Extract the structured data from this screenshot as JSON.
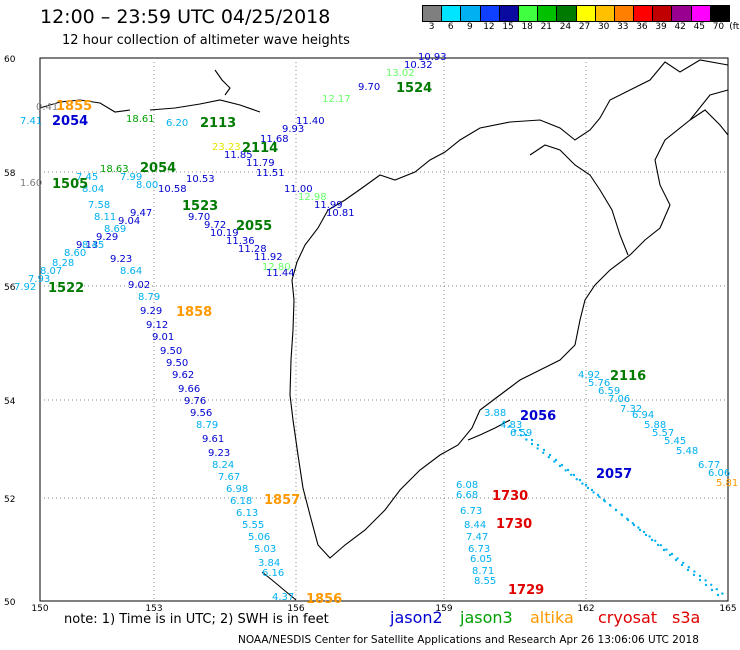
{
  "header": {
    "title": "12:00 – 23:59 UTC 04/25/2018",
    "subtitle": "12 hour collection of altimeter wave heights"
  },
  "colorbar": {
    "ticks": [
      "3",
      "6",
      "9",
      "12",
      "15",
      "18",
      "21",
      "24",
      "27",
      "30",
      "33",
      "36",
      "39",
      "42",
      "45",
      "70",
      "(ft)"
    ],
    "colors": [
      "#7f7f7f",
      "#00e5ff",
      "#00b0f0",
      "#1040ff",
      "#0a0aa0",
      "#40ff40",
      "#00c000",
      "#007a00",
      "#ffff00",
      "#ffc000",
      "#ff8000",
      "#ff0000",
      "#c00000",
      "#9a0090",
      "#ff00ff",
      "#000000"
    ]
  },
  "axes": {
    "lat_labels": [
      "60",
      "58",
      "56",
      "54",
      "52",
      "50"
    ],
    "lon_labels": [
      "150",
      "153",
      "156",
      "159",
      "162",
      "165"
    ]
  },
  "legend": {
    "note": "note: 1) Time is in UTC; 2) SWH is in feet",
    "items": [
      {
        "label": "jason2",
        "color": "#0000d0"
      },
      {
        "label": "jason3",
        "color": "#00a000"
      },
      {
        "label": "altika",
        "color": "#ff9900"
      },
      {
        "label": "cryosat",
        "color": "#e00000"
      },
      {
        "label": "s3a",
        "color": "#e00000"
      }
    ]
  },
  "credit": "NOAA/NESDIS Center for Satellite Applications and Research     Apr 26 13:06:06 UTC 2018",
  "pass_labels": [
    {
      "text": "1855",
      "color": "#ff9900"
    },
    {
      "text": "2054",
      "color": "#0000d0"
    },
    {
      "text": "2113",
      "color": "#007a00"
    },
    {
      "text": "1524",
      "color": "#007a00"
    },
    {
      "text": "2114",
      "color": "#007a00"
    },
    {
      "text": "1505",
      "color": "#007a00"
    },
    {
      "text": "2054",
      "color": "#007a00"
    },
    {
      "text": "1523",
      "color": "#007a00"
    },
    {
      "text": "2055",
      "color": "#007a00"
    },
    {
      "text": "1522",
      "color": "#007a00"
    },
    {
      "text": "1858",
      "color": "#ff9900"
    },
    {
      "text": "1857",
      "color": "#ff9900"
    },
    {
      "text": "1856",
      "color": "#ff9900"
    },
    {
      "text": "2116",
      "color": "#007a00"
    },
    {
      "text": "2056",
      "color": "#0000d0"
    },
    {
      "text": "2057",
      "color": "#0000d0"
    },
    {
      "text": "1730",
      "color": "#e00000"
    },
    {
      "text": "1730",
      "color": "#e00000"
    },
    {
      "text": "1729",
      "color": "#e00000"
    }
  ],
  "wave_values": [
    {
      "text": "10.93",
      "color": "#0000d0"
    },
    {
      "text": "10.32",
      "color": "#0000d0"
    },
    {
      "text": "13.02",
      "color": "#66ff66"
    },
    {
      "text": "9.70",
      "color": "#0000d0"
    },
    {
      "text": "0.41",
      "color": "#7f7f7f"
    },
    {
      "text": "7.41",
      "color": "#00b0f0"
    },
    {
      "text": "18.61",
      "color": "#00a000"
    },
    {
      "text": "6.20",
      "color": "#00b0f0"
    },
    {
      "text": "12.17",
      "color": "#66ff66"
    },
    {
      "text": "11.40",
      "color": "#0000d0"
    },
    {
      "text": "9.93",
      "color": "#0000d0"
    },
    {
      "text": "11.68",
      "color": "#0000d0"
    },
    {
      "text": "23.23",
      "color": "#e6e600"
    },
    {
      "text": "11.85",
      "color": "#0000d0"
    },
    {
      "text": "11.79",
      "color": "#0000d0"
    },
    {
      "text": "11.51",
      "color": "#0000d0"
    },
    {
      "text": "1.60",
      "color": "#7f7f7f"
    },
    {
      "text": "18.63",
      "color": "#00a000"
    },
    {
      "text": "7.45",
      "color": "#00b0f0"
    },
    {
      "text": "7.99",
      "color": "#00b0f0"
    },
    {
      "text": "8.04",
      "color": "#00b0f0"
    },
    {
      "text": "8.00",
      "color": "#00b0f0"
    },
    {
      "text": "10.53",
      "color": "#0000d0"
    },
    {
      "text": "10.58",
      "color": "#0000d0"
    },
    {
      "text": "11.00",
      "color": "#0000d0"
    },
    {
      "text": "12.98",
      "color": "#66ff66"
    },
    {
      "text": "11.99",
      "color": "#0000d0"
    },
    {
      "text": "10.81",
      "color": "#0000d0"
    },
    {
      "text": "7.58",
      "color": "#00b0f0"
    },
    {
      "text": "9.47",
      "color": "#0000d0"
    },
    {
      "text": "8.11",
      "color": "#00b0f0"
    },
    {
      "text": "9.04",
      "color": "#0000d0"
    },
    {
      "text": "9.70",
      "color": "#0000d0"
    },
    {
      "text": "9.72",
      "color": "#0000d0"
    },
    {
      "text": "10.19",
      "color": "#0000d0"
    },
    {
      "text": "8.69",
      "color": "#00b0f0"
    },
    {
      "text": "9.29",
      "color": "#0000d0"
    },
    {
      "text": "11.36",
      "color": "#0000d0"
    },
    {
      "text": "9.13",
      "color": "#0000d0"
    },
    {
      "text": "8.45",
      "color": "#00b0f0"
    },
    {
      "text": "11.28",
      "color": "#0000d0"
    },
    {
      "text": "8.60",
      "color": "#00b0f0"
    },
    {
      "text": "11.92",
      "color": "#0000d0"
    },
    {
      "text": "8.28",
      "color": "#00b0f0"
    },
    {
      "text": "9.23",
      "color": "#0000d0"
    },
    {
      "text": "12.80",
      "color": "#66ff66"
    },
    {
      "text": "8.07",
      "color": "#00b0f0"
    },
    {
      "text": "11.44",
      "color": "#0000d0"
    },
    {
      "text": "8.64",
      "color": "#00b0f0"
    },
    {
      "text": "7.93",
      "color": "#00b0f0"
    },
    {
      "text": "7.92",
      "color": "#00b0f0"
    },
    {
      "text": "9.02",
      "color": "#0000d0"
    },
    {
      "text": "8.79",
      "color": "#00b0f0"
    },
    {
      "text": "9.29",
      "color": "#0000d0"
    },
    {
      "text": "9.12",
      "color": "#0000d0"
    },
    {
      "text": "9.01",
      "color": "#0000d0"
    },
    {
      "text": "9.50",
      "color": "#0000d0"
    },
    {
      "text": "9.50",
      "color": "#0000d0"
    },
    {
      "text": "9.62",
      "color": "#0000d0"
    },
    {
      "text": "9.66",
      "color": "#0000d0"
    },
    {
      "text": "9.76",
      "color": "#0000d0"
    },
    {
      "text": "9.56",
      "color": "#0000d0"
    },
    {
      "text": "8.79",
      "color": "#00b0f0"
    },
    {
      "text": "9.61",
      "color": "#0000d0"
    },
    {
      "text": "9.23",
      "color": "#0000d0"
    },
    {
      "text": "8.24",
      "color": "#00b0f0"
    },
    {
      "text": "7.67",
      "color": "#00b0f0"
    },
    {
      "text": "6.98",
      "color": "#00b0f0"
    },
    {
      "text": "6.18",
      "color": "#00b0f0"
    },
    {
      "text": "6.13",
      "color": "#00b0f0"
    },
    {
      "text": "5.55",
      "color": "#00b0f0"
    },
    {
      "text": "5.06",
      "color": "#00b0f0"
    },
    {
      "text": "5.03",
      "color": "#00b0f0"
    },
    {
      "text": "3.84",
      "color": "#00b0f0"
    },
    {
      "text": "6.16",
      "color": "#00b0f0"
    },
    {
      "text": "4.37",
      "color": "#00b0f0"
    },
    {
      "text": "4.92",
      "color": "#00b0f0"
    },
    {
      "text": "5.76",
      "color": "#00b0f0"
    },
    {
      "text": "6.59",
      "color": "#00b0f0"
    },
    {
      "text": "7.06",
      "color": "#00b0f0"
    },
    {
      "text": "7.32",
      "color": "#00b0f0"
    },
    {
      "text": "6.94",
      "color": "#00b0f0"
    },
    {
      "text": "5.88",
      "color": "#00b0f0"
    },
    {
      "text": "5.57",
      "color": "#00b0f0"
    },
    {
      "text": "5.45",
      "color": "#00b0f0"
    },
    {
      "text": "5.48",
      "color": "#00b0f0"
    },
    {
      "text": "6.77",
      "color": "#00b0f0"
    },
    {
      "text": "6.06",
      "color": "#00b0f0"
    },
    {
      "text": "5.81",
      "color": "#ff9900"
    },
    {
      "text": "3.88",
      "color": "#00b0f0"
    },
    {
      "text": "4.83",
      "color": "#00b0f0"
    },
    {
      "text": "6.59",
      "color": "#00b0f0"
    },
    {
      "text": "6.08",
      "color": "#00b0f0"
    },
    {
      "text": "6.68",
      "color": "#00b0f0"
    },
    {
      "text": "6.73",
      "color": "#00b0f0"
    },
    {
      "text": "8.44",
      "color": "#00b0f0"
    },
    {
      "text": "7.47",
      "color": "#00b0f0"
    },
    {
      "text": "6.73",
      "color": "#00b0f0"
    },
    {
      "text": "6.05",
      "color": "#00b0f0"
    },
    {
      "text": "8.71",
      "color": "#00b0f0"
    },
    {
      "text": "8.55",
      "color": "#00b0f0"
    }
  ]
}
